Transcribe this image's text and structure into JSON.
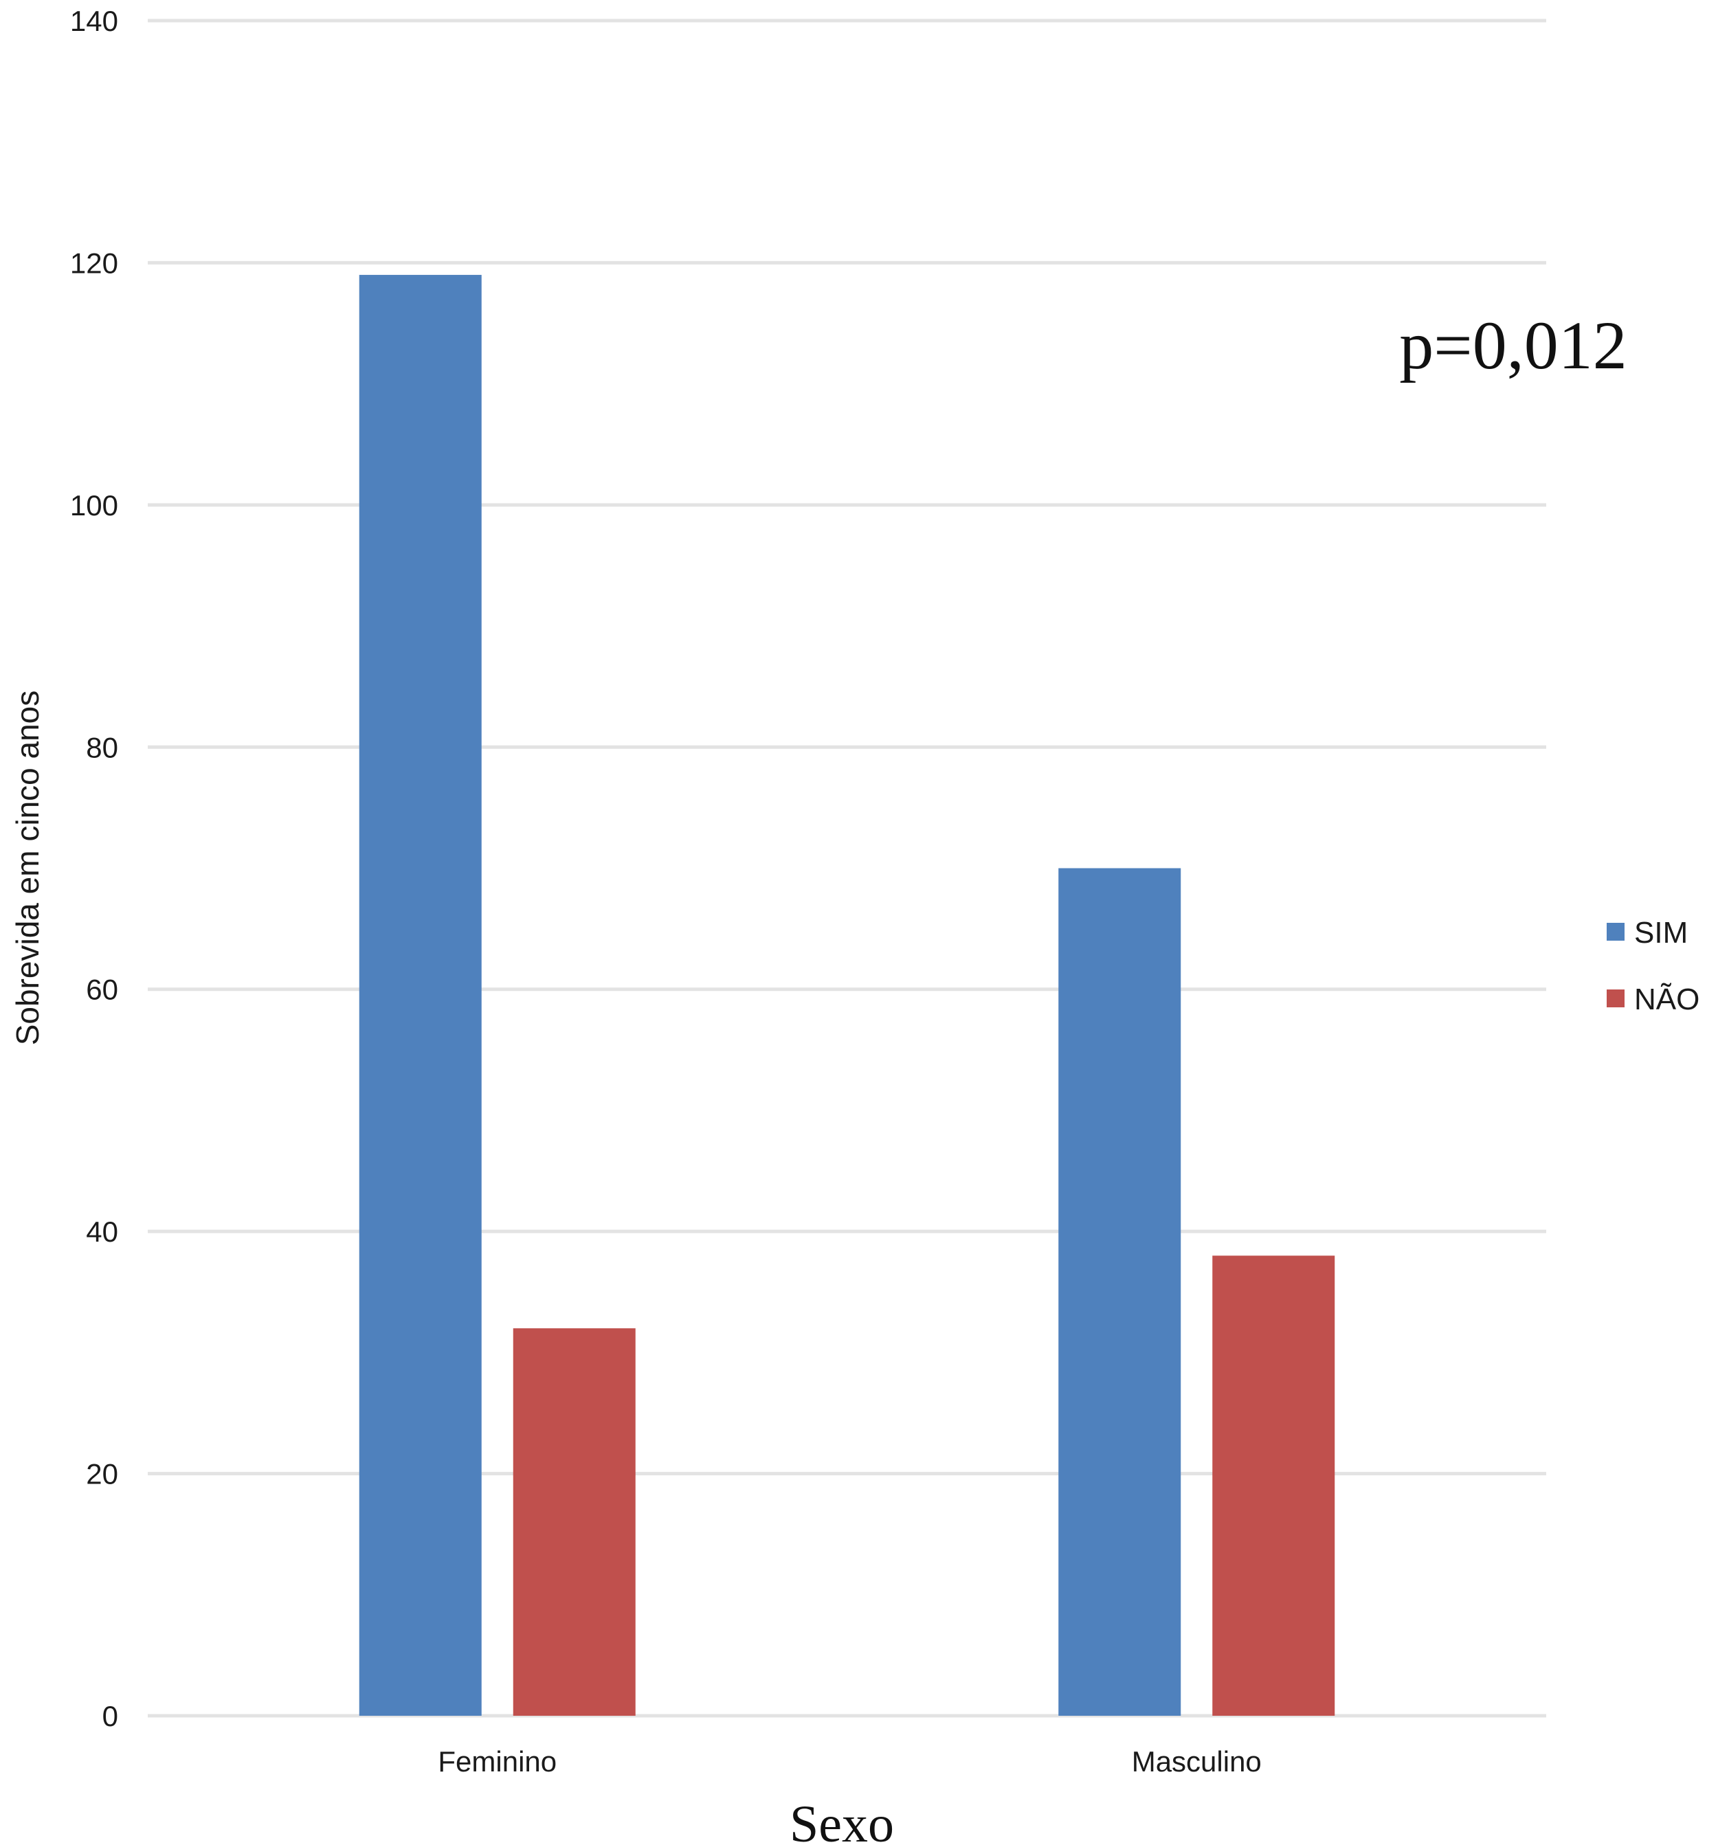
{
  "chart_data": {
    "type": "bar",
    "categories": [
      "Feminino",
      "Masculino"
    ],
    "series": [
      {
        "name": "SIM",
        "values": [
          119,
          70
        ],
        "color": "#4F81BD"
      },
      {
        "name": "NÃO",
        "values": [
          32,
          38
        ],
        "color": "#C0504D"
      }
    ],
    "xlabel": "Sexo",
    "ylabel": "Sobrevida em cinco anos",
    "ylim": [
      0,
      140
    ],
    "yticks": [
      0,
      20,
      40,
      60,
      80,
      100,
      120,
      140
    ],
    "annotation": "p=0,012",
    "grid": true,
    "legend_position": "right"
  }
}
